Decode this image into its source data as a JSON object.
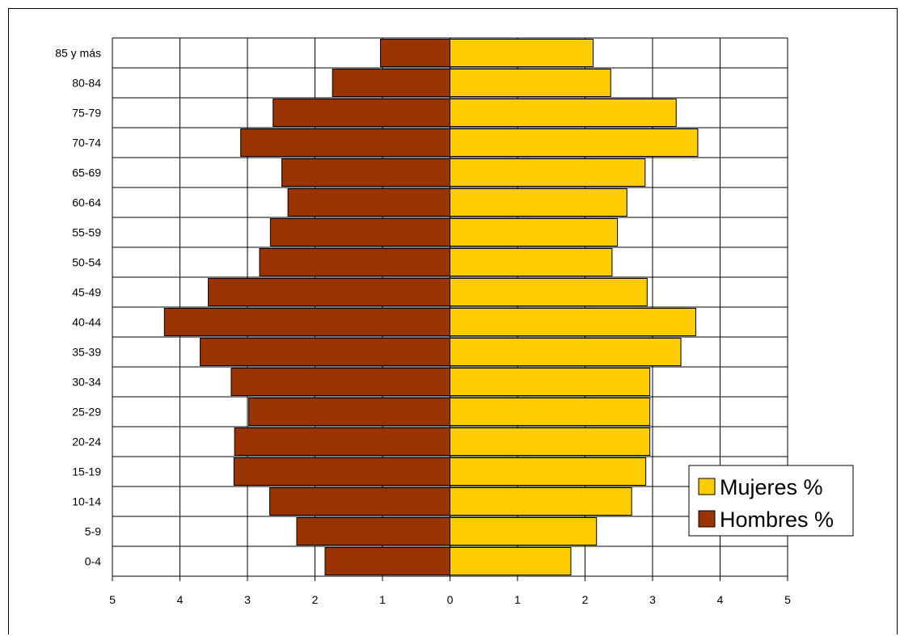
{
  "chart_data": {
    "type": "bar",
    "orientation": "horizontal",
    "categories": [
      "0-4",
      "5-9",
      "10-14",
      "15-19",
      "20-24",
      "25-29",
      "30-34",
      "35-39",
      "40-44",
      "45-49",
      "50-54",
      "55-59",
      "60-64",
      "65-69",
      "70-74",
      "75-79",
      "80-84",
      "85 y más"
    ],
    "series": [
      {
        "name": "Hombres %",
        "color": "#993300",
        "direction": "left",
        "values": [
          1.85,
          2.27,
          2.67,
          3.2,
          3.19,
          2.98,
          3.24,
          3.7,
          4.23,
          3.58,
          2.82,
          2.66,
          2.4,
          2.49,
          3.1,
          2.62,
          1.74,
          1.03
        ]
      },
      {
        "name": "Mujeres %",
        "color": "#FFCC00",
        "direction": "right",
        "values": [
          1.79,
          2.17,
          2.69,
          2.9,
          2.96,
          2.96,
          2.96,
          3.42,
          3.64,
          2.92,
          2.4,
          2.48,
          2.62,
          2.89,
          3.67,
          3.35,
          2.38,
          2.12
        ]
      }
    ],
    "x_ticks": [
      "5",
      "4",
      "3",
      "2",
      "1",
      "0",
      "1",
      "2",
      "3",
      "4",
      "5"
    ],
    "xlim": [
      -5,
      5
    ],
    "grid": true,
    "legend_position": "right"
  }
}
